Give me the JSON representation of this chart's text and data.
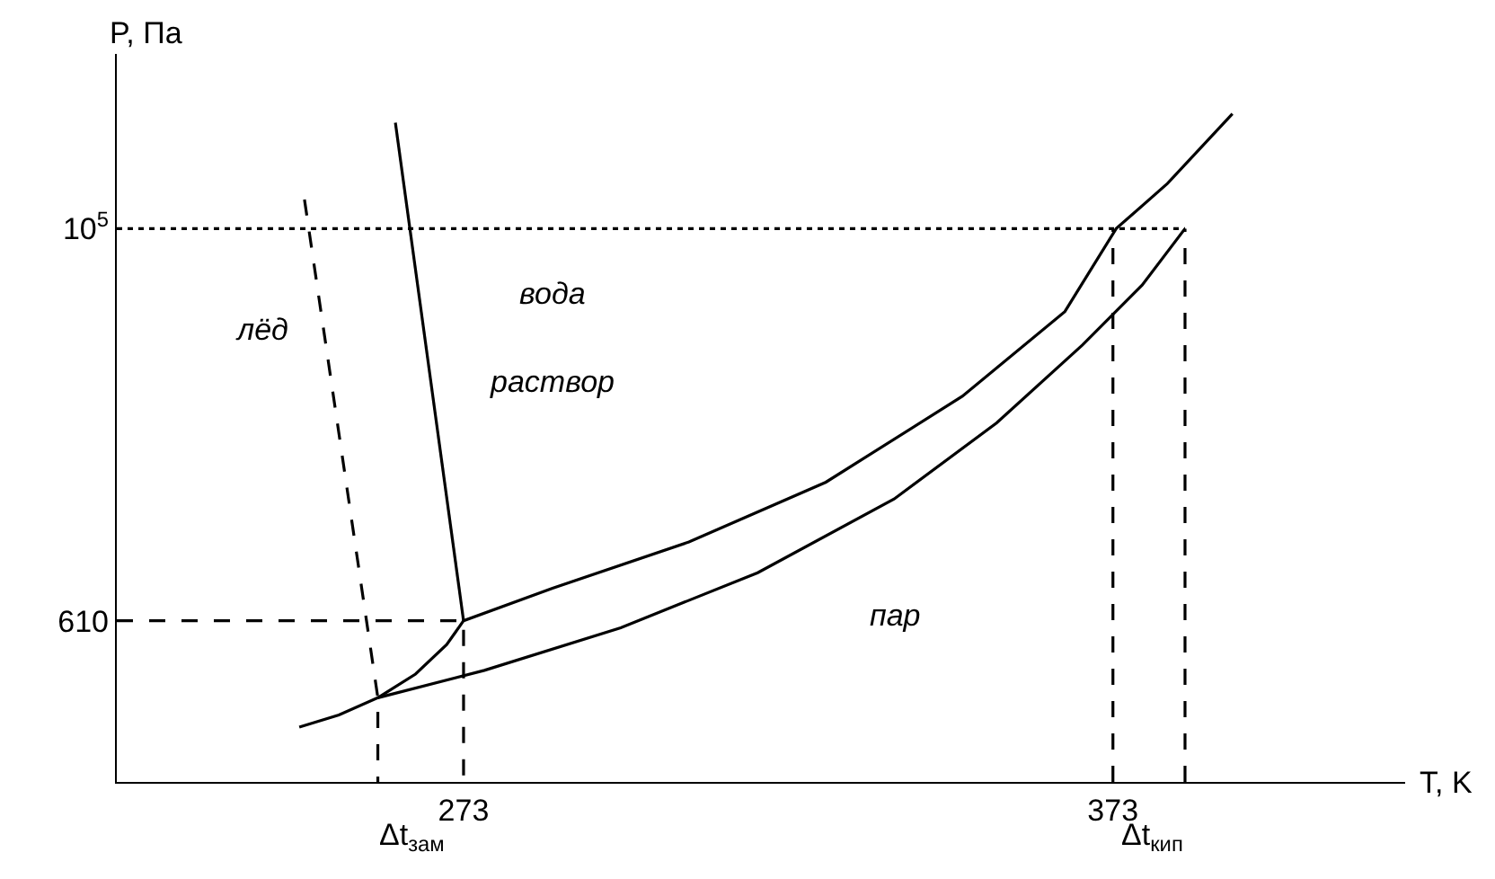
{
  "chart_data": {
    "type": "line",
    "log": "y",
    "xlabel": "T, K",
    "ylabel": "P, Па",
    "xlim": [
      219.6,
      418
    ],
    "ylim": [
      75,
      970000
    ],
    "xticks": [
      273,
      373
    ],
    "yticks": [
      610,
      {
        "value": 100000,
        "label": "10$^{5}$"
      }
    ],
    "series": [
      {
        "color": "#000000",
        "line_style": "solid",
        "x": [
          259.8,
          265.6,
          270.4,
          273,
          286.7,
          307.7,
          328.8,
          349.8,
          365.6,
          373.5,
          381.4,
          391.4
        ],
        "values": [
          224,
          305,
          447,
          610,
          930,
          1700,
          3700,
          11300,
          34000,
          100000,
          180000,
          445000
        ]
      },
      {
        "color": "#000000",
        "line_style": "solid",
        "x": [
          247.7,
          253.8,
          259.8,
          276.2,
          297.2,
          318.3,
          339.3,
          355.1,
          368.3,
          377.5,
          384.1
        ],
        "values": [
          153,
          179,
          224,
          320,
          557,
          1140,
          2970,
          8000,
          22000,
          48000,
          100000
        ]
      },
      {
        "color": "#000000",
        "line_style": "solid",
        "x": [
          262.5,
          273
        ],
        "values": [
          397000,
          610
        ]
      },
      {
        "color": "#000000",
        "line_style": "dashed",
        "x": [
          248.5,
          259.8,
          259.8
        ],
        "values": [
          146000,
          224,
          75
        ]
      },
      {
        "color": "#000000",
        "line_style": "dashed",
        "x": [
          219.6,
          273,
          273
        ],
        "values": [
          610,
          610,
          75
        ]
      },
      {
        "color": "#000000",
        "line_style": "dotted",
        "x": [
          219.6,
          384.1
        ],
        "values": [
          100000,
          100000
        ]
      },
      {
        "color": "#000000",
        "line_style": "dashed",
        "x": [
          373,
          373
        ],
        "values": [
          75,
          100000
        ]
      },
      {
        "color": "#000000",
        "line_style": "dashed",
        "x": [
          384.1,
          384.1
        ],
        "values": [
          75,
          100000
        ]
      }
    ],
    "annotations": [
      "лёд",
      "вода",
      "раствор",
      "пар",
      "Δt$_{зам}$",
      "Δt$_{кип}$"
    ]
  }
}
